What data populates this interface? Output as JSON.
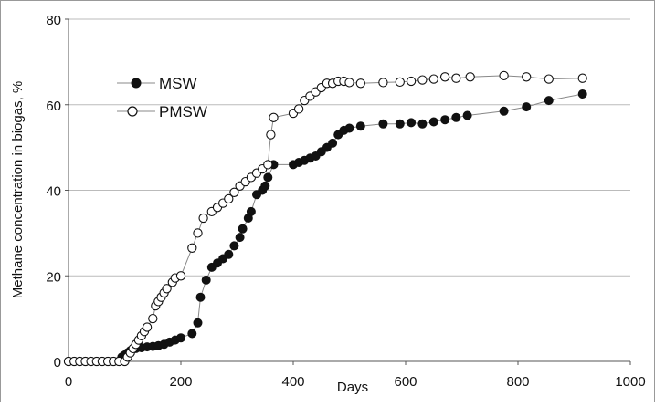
{
  "chart_data": {
    "type": "scatter",
    "title": "",
    "xlabel": "Days",
    "ylabel": "Methane concentration in biogas, %",
    "xlim": [
      0,
      1000
    ],
    "ylim": [
      0,
      80
    ],
    "x_ticks": [
      "0",
      "200",
      "400",
      "600",
      "800",
      "1000"
    ],
    "y_ticks": [
      "0",
      "20",
      "40",
      "60",
      "80"
    ],
    "grid": {
      "horizontal": true,
      "vertical": false
    },
    "legend_position": "top-left",
    "colors": {
      "msw": "#111111",
      "pmsw": "#ffffff",
      "line": "#888888",
      "grid": "#bbbbbb"
    },
    "series": [
      {
        "name": "MSW",
        "marker": "filled-circle",
        "points": [
          [
            0,
            0
          ],
          [
            10,
            0
          ],
          [
            20,
            0
          ],
          [
            30,
            0
          ],
          [
            40,
            0
          ],
          [
            50,
            0
          ],
          [
            60,
            0
          ],
          [
            70,
            0
          ],
          [
            80,
            0
          ],
          [
            90,
            0
          ],
          [
            95,
            1
          ],
          [
            100,
            1.5
          ],
          [
            105,
            2
          ],
          [
            110,
            2.5
          ],
          [
            120,
            3
          ],
          [
            130,
            3.2
          ],
          [
            140,
            3.4
          ],
          [
            150,
            3.5
          ],
          [
            160,
            3.7
          ],
          [
            170,
            4
          ],
          [
            180,
            4.5
          ],
          [
            190,
            5
          ],
          [
            200,
            5.5
          ],
          [
            220,
            6.5
          ],
          [
            230,
            9
          ],
          [
            235,
            15
          ],
          [
            245,
            19
          ],
          [
            255,
            22
          ],
          [
            265,
            23
          ],
          [
            275,
            24
          ],
          [
            285,
            25
          ],
          [
            295,
            27
          ],
          [
            305,
            29
          ],
          [
            310,
            31
          ],
          [
            320,
            33.5
          ],
          [
            325,
            35
          ],
          [
            335,
            39
          ],
          [
            345,
            40
          ],
          [
            350,
            41
          ],
          [
            355,
            43
          ],
          [
            365,
            46
          ],
          [
            400,
            46
          ],
          [
            410,
            46.5
          ],
          [
            420,
            47
          ],
          [
            430,
            47.5
          ],
          [
            440,
            48
          ],
          [
            450,
            49
          ],
          [
            460,
            50
          ],
          [
            470,
            51
          ],
          [
            480,
            53
          ],
          [
            490,
            54
          ],
          [
            500,
            54.5
          ],
          [
            520,
            55
          ],
          [
            560,
            55.5
          ],
          [
            590,
            55.5
          ],
          [
            610,
            55.8
          ],
          [
            630,
            55.5
          ],
          [
            650,
            56
          ],
          [
            670,
            56.5
          ],
          [
            690,
            57
          ],
          [
            710,
            57.5
          ],
          [
            775,
            58.5
          ],
          [
            815,
            59.5
          ],
          [
            855,
            61
          ],
          [
            915,
            62.5
          ]
        ]
      },
      {
        "name": "PMSW",
        "marker": "open-circle",
        "points": [
          [
            0,
            0
          ],
          [
            10,
            0
          ],
          [
            20,
            0
          ],
          [
            30,
            0
          ],
          [
            40,
            0
          ],
          [
            50,
            0
          ],
          [
            60,
            0
          ],
          [
            70,
            0
          ],
          [
            80,
            0
          ],
          [
            90,
            0
          ],
          [
            100,
            0
          ],
          [
            105,
            1
          ],
          [
            110,
            2
          ],
          [
            115,
            3
          ],
          [
            120,
            4
          ],
          [
            125,
            5
          ],
          [
            130,
            6
          ],
          [
            135,
            7
          ],
          [
            140,
            8
          ],
          [
            150,
            10
          ],
          [
            155,
            13
          ],
          [
            160,
            14
          ],
          [
            165,
            15
          ],
          [
            170,
            16
          ],
          [
            175,
            17
          ],
          [
            185,
            18.5
          ],
          [
            190,
            19.5
          ],
          [
            200,
            20
          ],
          [
            220,
            26.5
          ],
          [
            230,
            30
          ],
          [
            240,
            33.5
          ],
          [
            255,
            35
          ],
          [
            265,
            36
          ],
          [
            275,
            37
          ],
          [
            285,
            38
          ],
          [
            295,
            39.5
          ],
          [
            305,
            41
          ],
          [
            315,
            42
          ],
          [
            325,
            43
          ],
          [
            335,
            44
          ],
          [
            345,
            45
          ],
          [
            355,
            46
          ],
          [
            360,
            53
          ],
          [
            365,
            57
          ],
          [
            400,
            58
          ],
          [
            410,
            59
          ],
          [
            420,
            61
          ],
          [
            430,
            62
          ],
          [
            440,
            63
          ],
          [
            450,
            64
          ],
          [
            460,
            65
          ],
          [
            470,
            65
          ],
          [
            480,
            65.5
          ],
          [
            490,
            65.5
          ],
          [
            500,
            65.2
          ],
          [
            520,
            65
          ],
          [
            560,
            65.2
          ],
          [
            590,
            65.3
          ],
          [
            610,
            65.5
          ],
          [
            630,
            65.8
          ],
          [
            650,
            66
          ],
          [
            670,
            66.5
          ],
          [
            690,
            66.2
          ],
          [
            715,
            66.5
          ],
          [
            775,
            66.8
          ],
          [
            815,
            66.5
          ],
          [
            855,
            66
          ],
          [
            915,
            66.2
          ]
        ]
      }
    ]
  }
}
